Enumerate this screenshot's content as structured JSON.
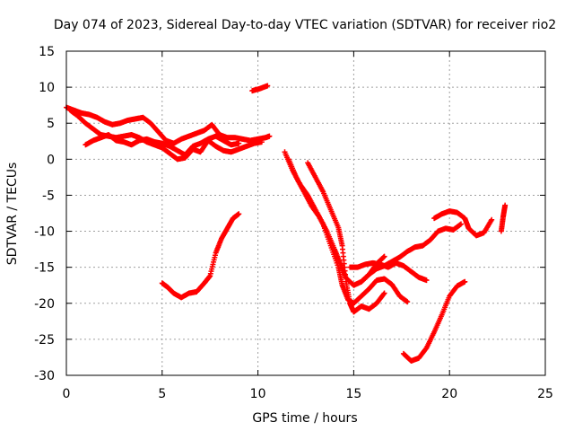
{
  "chart_data": {
    "type": "scatter",
    "title": "Day 074 of 2023, Sidereal Day-to-day VTEC variation (SDTVAR) for receiver rio2",
    "xlabel": "GPS time / hours",
    "ylabel": "SDTVAR / TECUs",
    "xlim": [
      0,
      25
    ],
    "ylim": [
      -30,
      15
    ],
    "xticks": [
      0,
      5,
      10,
      15,
      20,
      25
    ],
    "xtick_labels": [
      "0",
      "5",
      "10",
      "15",
      "20",
      "25"
    ],
    "yticks": [
      -30,
      -25,
      -20,
      -15,
      -10,
      -5,
      0,
      5,
      10,
      15
    ],
    "ytick_labels": [
      "-30",
      "-25",
      "-20",
      "-15",
      "-10",
      "-5",
      "0",
      "5",
      "10",
      "15"
    ],
    "grid": true,
    "marker": "+",
    "color": "#ff0000",
    "series": [
      {
        "x": [
          0,
          0.4,
          0.8,
          1.2,
          1.6,
          2.0,
          2.4,
          2.8,
          3.2,
          3.6,
          4.0,
          4.4,
          4.8,
          5.2,
          5.6,
          6.0,
          6.4,
          6.8,
          7.2,
          7.6,
          8.0,
          8.4,
          8.8,
          9.2,
          9.6,
          10.0,
          10.4,
          10.6
        ],
        "y": [
          7.2,
          6.8,
          6.4,
          6.2,
          5.8,
          5.2,
          4.8,
          5.0,
          5.4,
          5.6,
          5.8,
          5.0,
          3.8,
          2.6,
          2.2,
          2.8,
          3.2,
          3.6,
          4.0,
          4.8,
          3.4,
          3.0,
          3.0,
          2.8,
          2.6,
          2.8,
          3.0,
          3.2
        ]
      },
      {
        "x": [
          0.2,
          0.6,
          1.0,
          1.4,
          1.8,
          2.2,
          2.6,
          3.0,
          3.4,
          3.8,
          4.2,
          4.6,
          5.0,
          5.4,
          5.8,
          6.2,
          6.6,
          7.0,
          7.4,
          7.8,
          8.2,
          8.6,
          9.0,
          9.4,
          9.8,
          10.2
        ],
        "y": [
          6.8,
          6.0,
          5.0,
          4.2,
          3.4,
          3.2,
          3.0,
          3.2,
          3.4,
          3.0,
          2.4,
          2.0,
          1.6,
          0.8,
          0.0,
          0.2,
          1.4,
          1.0,
          2.6,
          1.8,
          1.2,
          1.0,
          1.4,
          1.8,
          2.2,
          2.4
        ]
      },
      {
        "x": [
          1.0,
          1.4,
          1.8,
          2.2,
          2.6,
          3.0,
          3.4,
          3.8,
          4.2,
          4.6,
          5.0,
          5.4,
          5.8,
          6.2,
          6.6,
          7.0,
          7.4,
          7.8,
          8.2,
          8.6,
          9.0
        ],
        "y": [
          2.0,
          2.6,
          3.0,
          3.4,
          2.6,
          2.4,
          2.0,
          2.6,
          2.8,
          2.4,
          2.2,
          1.8,
          1.2,
          0.6,
          1.8,
          2.2,
          2.8,
          3.2,
          2.6,
          2.0,
          2.2
        ]
      },
      {
        "x": [
          9.7,
          10.1,
          10.5
        ],
        "y": [
          9.5,
          9.8,
          10.2
        ]
      },
      {
        "x": [
          5.0,
          5.3,
          5.6,
          6.0,
          6.4,
          6.8,
          7.2,
          7.5,
          7.8,
          8.1,
          8.4,
          8.7,
          9.0
        ],
        "y": [
          -17.2,
          -17.8,
          -18.6,
          -19.2,
          -18.6,
          -18.4,
          -17.2,
          -16.2,
          -13.0,
          -11.0,
          -9.6,
          -8.2,
          -7.6
        ]
      },
      {
        "x": [
          11.4,
          11.8,
          12.2,
          12.6,
          13.0,
          13.4,
          13.8,
          14.2,
          14.4,
          14.7,
          15.0,
          15.4,
          15.8,
          16.2,
          16.6,
          17.0,
          17.4,
          17.8
        ],
        "y": [
          1.0,
          -1.5,
          -3.5,
          -5.0,
          -7.0,
          -9.0,
          -12.0,
          -15.0,
          -17.5,
          -19.5,
          -20.0,
          -19.0,
          -18.0,
          -16.8,
          -16.6,
          -17.4,
          -19.0,
          -19.8
        ]
      },
      {
        "x": [
          11.6,
          12.0,
          12.4,
          12.8,
          13.2,
          13.6,
          14.0,
          14.3,
          14.6,
          15.0,
          15.4,
          15.8,
          16.2,
          16.6
        ],
        "y": [
          0.0,
          -2.5,
          -4.5,
          -6.5,
          -8.0,
          -10.0,
          -12.5,
          -14.5,
          -16.5,
          -17.5,
          -17.0,
          -16.0,
          -14.5,
          -13.5
        ]
      },
      {
        "x": [
          12.6,
          13.0,
          13.4,
          13.8,
          14.2,
          14.4,
          14.6,
          14.8,
          15.0,
          15.4,
          15.8,
          16.2,
          16.6
        ],
        "y": [
          -0.5,
          -2.5,
          -4.5,
          -7.0,
          -9.5,
          -12.0,
          -17.0,
          -20.0,
          -21.2,
          -20.4,
          -20.8,
          -20.0,
          -18.6
        ]
      },
      {
        "x": [
          14.8,
          15.2,
          15.6,
          16.0,
          16.4,
          16.8,
          17.2,
          17.6,
          18.0,
          18.4,
          18.8
        ],
        "y": [
          -15.0,
          -15.0,
          -14.6,
          -14.4,
          -14.6,
          -15.0,
          -14.4,
          -14.8,
          -15.6,
          -16.4,
          -16.8
        ]
      },
      {
        "x": [
          15.4,
          15.8,
          16.2,
          16.6,
          17.0,
          17.4,
          17.8,
          18.2,
          18.6,
          19.0,
          19.4,
          19.8,
          20.2,
          20.6
        ],
        "y": [
          -17.0,
          -16.0,
          -15.2,
          -14.8,
          -14.2,
          -13.6,
          -12.8,
          -12.2,
          -12.0,
          -11.2,
          -10.0,
          -9.6,
          -9.8,
          -9.0
        ]
      },
      {
        "x": [
          17.6,
          18.0,
          18.4,
          18.8,
          19.2,
          19.6,
          20.0,
          20.4,
          20.8
        ],
        "y": [
          -27.0,
          -28.0,
          -27.6,
          -26.2,
          -24.0,
          -21.6,
          -19.0,
          -17.6,
          -17.0
        ]
      },
      {
        "x": [
          19.2,
          19.6,
          20.0,
          20.4,
          20.8,
          21.0,
          21.4,
          21.8,
          22.2
        ],
        "y": [
          -8.2,
          -7.6,
          -7.2,
          -7.4,
          -8.2,
          -9.6,
          -10.6,
          -10.2,
          -8.4
        ]
      },
      {
        "x": [
          22.7,
          22.8,
          22.9
        ],
        "y": [
          -10.0,
          -8.0,
          -6.4
        ]
      }
    ]
  }
}
